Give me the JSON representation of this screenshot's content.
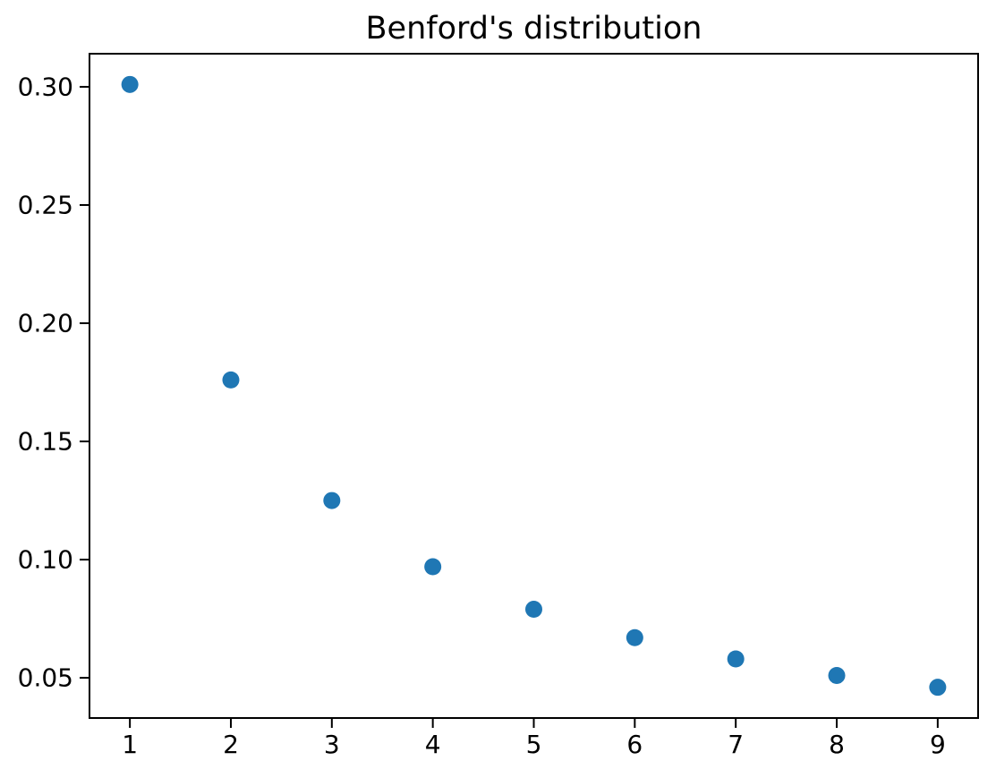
{
  "chart_data": {
    "type": "scatter",
    "title": "Benford's distribution",
    "xlabel": "",
    "ylabel": "",
    "x": [
      1,
      2,
      3,
      4,
      5,
      6,
      7,
      8,
      9
    ],
    "y": [
      0.301,
      0.176,
      0.125,
      0.097,
      0.079,
      0.067,
      0.058,
      0.051,
      0.046
    ],
    "xticks": [
      1,
      2,
      3,
      4,
      5,
      6,
      7,
      8,
      9
    ],
    "xtick_labels": [
      "1",
      "2",
      "3",
      "4",
      "5",
      "6",
      "7",
      "8",
      "9"
    ],
    "yticks": [
      0.05,
      0.1,
      0.15,
      0.2,
      0.25,
      0.3
    ],
    "ytick_labels": [
      "0.05",
      "0.10",
      "0.15",
      "0.20",
      "0.25",
      "0.30"
    ],
    "xlim": [
      0.6,
      9.4
    ],
    "ylim": [
      0.033,
      0.314
    ],
    "grid": false,
    "legend": null,
    "marker_color": "#1f77b4",
    "axis_color": "#000000",
    "background_color": "#ffffff"
  }
}
